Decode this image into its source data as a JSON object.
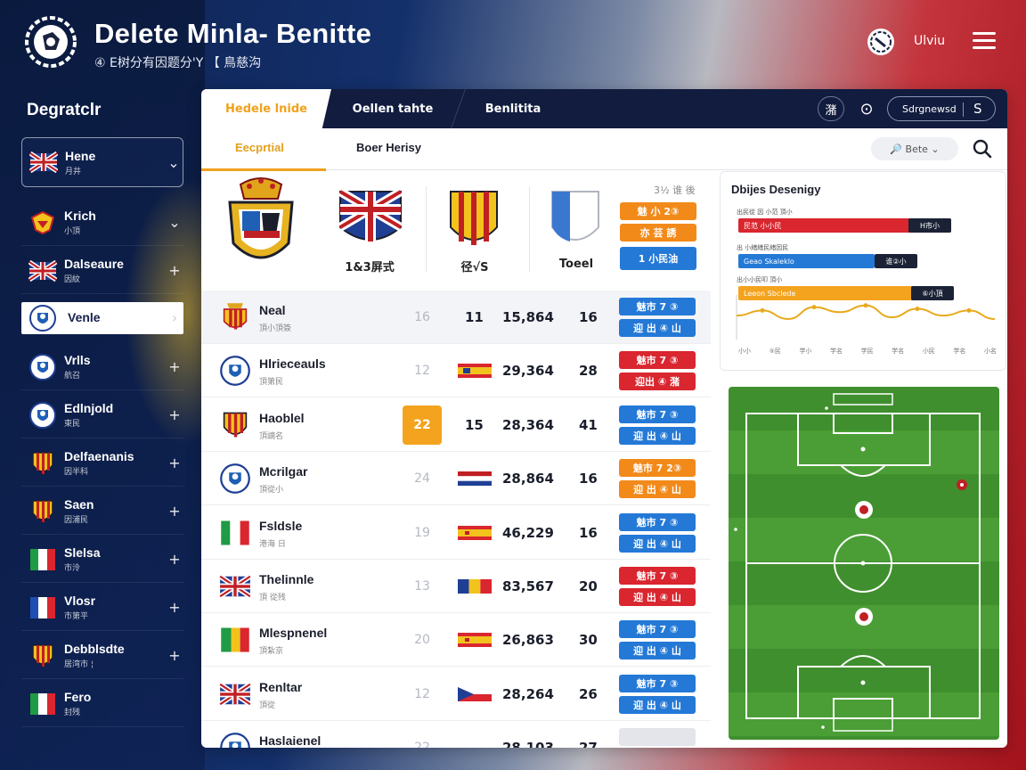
{
  "app": {
    "title": "Delete Minla- Benitte",
    "subtitle": "④ E树分有因题分'Y 【 鳥慈沟",
    "user": "Ulviu",
    "colors": {
      "navy": "#111c3e",
      "accent": "#f0a21c",
      "blue": "#2479d6",
      "red": "#d9262f",
      "orange": "#f28a1a"
    }
  },
  "sidebar": {
    "title": "Degratclr",
    "items": [
      {
        "name": "Hene",
        "sub": "月井",
        "flag": "uk-flag",
        "action": "⌄"
      },
      {
        "name": "Krich",
        "sub": "小頂",
        "flag": "shield-flag",
        "action": "⌄"
      },
      {
        "name": "Dalseaure",
        "sub": "因紋",
        "flag": "uk-flag",
        "action": "+"
      },
      {
        "name": "Venle",
        "sub": "",
        "flag": "crest-flag",
        "action": "›"
      },
      {
        "name": "Vrlls",
        "sub": "航召",
        "flag": "crest-flag",
        "action": "+"
      },
      {
        "name": "Edlnjold",
        "sub": "東民",
        "flag": "crest-flag",
        "action": "+"
      },
      {
        "name": "Delfaenanis",
        "sub": "因半科",
        "flag": "catalan-flag",
        "action": "+"
      },
      {
        "name": "Saen",
        "sub": "因浦民",
        "flag": "catalan-flag",
        "action": "+"
      },
      {
        "name": "Slelsa",
        "sub": "市泠",
        "flag": "italy-flag",
        "action": "+"
      },
      {
        "name": "Vlosr",
        "sub": "市第平",
        "flag": "france-flag",
        "action": "+"
      },
      {
        "name": "Debblsdte",
        "sub": "居湾市 ¦",
        "flag": "catalan-flag",
        "action": "+"
      },
      {
        "name": "Fero",
        "sub": "封残",
        "flag": "italy-flag",
        "action": ""
      }
    ]
  },
  "tabs": [
    {
      "label": "Hedele lnide"
    },
    {
      "label": "Oellen tahte"
    },
    {
      "label": "Benlitita"
    }
  ],
  "toolbar": {
    "icon1": "潴",
    "icon2": "⊙",
    "select_label": "Sdrgnewsd",
    "select_end": "S"
  },
  "subtabs": [
    {
      "label": "Eecprtial"
    },
    {
      "label": "Boer Herisy"
    }
  ],
  "sub_search": "🔎 Bete ⌄",
  "featured": {
    "count_label": "3½ 谁 後",
    "labels": [
      "1&3屏式",
      "径√S",
      "Toeel"
    ],
    "pills": [
      {
        "label": "魅 小 2③",
        "color": "orange"
      },
      {
        "label": "亦 芸 誘",
        "color": "orange"
      },
      {
        "label": "1 小民油",
        "color": "blue"
      }
    ]
  },
  "table": {
    "rows": [
      {
        "name": "Neal",
        "sub": "頂小頂簽",
        "crest": "spain-crest",
        "rank": "16",
        "rank_badge": false,
        "flag": "",
        "v1": "11",
        "v2": "15,864",
        "v3": "16",
        "p1": "魅市 7 ③",
        "c1": "blue",
        "p2": "迎 出 ④ 山",
        "c2": "blue",
        "hl": true
      },
      {
        "name": "Hlrieceauls",
        "sub": "頂第民",
        "crest": "shield-crest",
        "rank": "12",
        "rank_badge": false,
        "flag": "spain",
        "v1": "",
        "v2": "29,364",
        "v3": "28",
        "p1": "魅市 7 ③",
        "c1": "red",
        "p2": "迎出 ④ 潴",
        "c2": "red",
        "hl": false
      },
      {
        "name": "Haoblel",
        "sub": "頂謫名",
        "crest": "catalan-crest",
        "rank": "22",
        "rank_badge": true,
        "flag": "",
        "v1": "15",
        "v2": "28,364",
        "v3": "41",
        "p1": "魅市 7 ③",
        "c1": "blue",
        "p2": "迎 出 ④ 山",
        "c2": "blue",
        "hl": false
      },
      {
        "name": "Mcrilgar",
        "sub": "頂從小",
        "crest": "shield-crest",
        "rank": "24",
        "rank_badge": false,
        "flag": "netherlands",
        "v1": "",
        "v2": "28,864",
        "v3": "16",
        "p1": "魅市 7 2③",
        "c1": "orange",
        "p2": "迎 出 ④ 山",
        "c2": "orange",
        "hl": false
      },
      {
        "name": "Fsldsle",
        "sub": "港海 日",
        "crest": "italy-crest",
        "rank": "19",
        "rank_badge": false,
        "flag": "spain2",
        "v1": "",
        "v2": "46,229",
        "v3": "16",
        "p1": "魅市 7 ③",
        "c1": "blue",
        "p2": "迎 出 ④ 山",
        "c2": "blue",
        "hl": false
      },
      {
        "name": "Thelinnle",
        "sub": "頂 從残",
        "crest": "uk-crest",
        "rank": "13",
        "rank_badge": false,
        "flag": "romania",
        "v1": "",
        "v2": "83,567",
        "v3": "20",
        "p1": "魅市 7 ③",
        "c1": "red",
        "p2": "迎 出 ④ 山",
        "c2": "red",
        "hl": false
      },
      {
        "name": "Mlespnenel",
        "sub": "頂紮京",
        "crest": "lithuania-crest",
        "rank": "20",
        "rank_badge": false,
        "flag": "spain2",
        "v1": "",
        "v2": "26,863",
        "v3": "30",
        "p1": "魅市 7 ③",
        "c1": "blue",
        "p2": "迎 出 ④ 山",
        "c2": "blue",
        "hl": false
      },
      {
        "name": "Renltar",
        "sub": "頂從",
        "crest": "uk-crest",
        "rank": "12",
        "rank_badge": false,
        "flag": "czech",
        "v1": "",
        "v2": "28,264",
        "v3": "26",
        "p1": "魅市 7 ③",
        "c1": "blue",
        "p2": "迎 出 ④ 山",
        "c2": "blue",
        "hl": false
      },
      {
        "name": "Haslaienel",
        "sub": "",
        "crest": "shield-crest",
        "rank": "22",
        "rank_badge": false,
        "flag": "",
        "v1": "",
        "v2": "28,103",
        "v3": "27",
        "p1": "",
        "c1": "grey",
        "p2": "",
        "c2": "grey",
        "hl": false
      }
    ]
  },
  "card": {
    "title": "Dbijes Desenigy",
    "bars": [
      {
        "caption": "出民從 因 小范 頂小",
        "label": "民范 小小民",
        "tag": "H市小",
        "color": "#d9262f",
        "value": 0.86
      },
      {
        "caption": "出 小緒緒民緒因民",
        "label": "Geao Skaleklo",
        "tag": "谁②小",
        "color": "#2479d6",
        "value": 0.55
      },
      {
        "caption": "出小小民叩 頂小",
        "label": "Leeon Sbclede",
        "tag": "⑥小頂",
        "color": "#f4a31e",
        "value": 0.87
      }
    ],
    "axis": [
      "小小",
      "⑤民",
      "学小",
      "学名",
      "学民",
      "学名",
      "小民",
      "学名",
      "小名"
    ],
    "line": [
      0.45,
      0.3,
      0.55,
      0.2,
      0.35,
      0.15,
      0.5,
      0.25,
      0.45,
      0.3,
      0.55
    ]
  }
}
